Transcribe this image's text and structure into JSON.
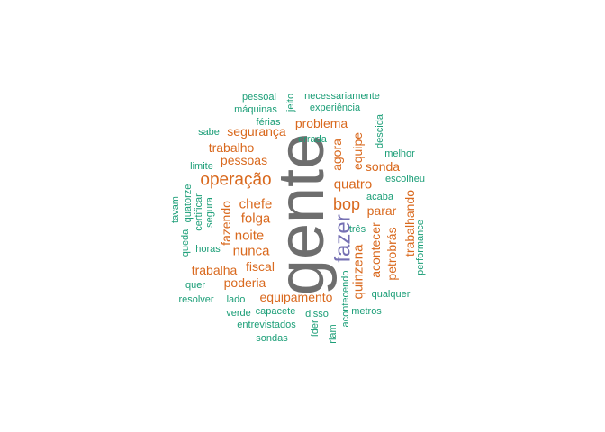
{
  "colors": {
    "gray": "#6e6e6e",
    "orange": "#d9691e",
    "purple": "#7570b3",
    "teal": "#1b9e77"
  },
  "words": [
    {
      "text": "gente",
      "color": "gray",
      "size": 72,
      "rotate": true
    },
    {
      "text": "fazer",
      "color": "purple",
      "size": 24,
      "rotate": true
    },
    {
      "text": "operação",
      "color": "orange",
      "size": 19,
      "rotate": false
    },
    {
      "text": "bop",
      "color": "orange",
      "size": 18,
      "rotate": false
    },
    {
      "text": "quatro",
      "color": "orange",
      "size": 15,
      "rotate": false
    },
    {
      "text": "chefe",
      "color": "orange",
      "size": 15,
      "rotate": false
    },
    {
      "text": "folga",
      "color": "orange",
      "size": 15,
      "rotate": false
    },
    {
      "text": "noite",
      "color": "orange",
      "size": 15,
      "rotate": false
    },
    {
      "text": "nunca",
      "color": "orange",
      "size": 15,
      "rotate": false
    },
    {
      "text": "quinzena",
      "color": "orange",
      "size": 15,
      "rotate": true
    },
    {
      "text": "problema",
      "color": "orange",
      "size": 14,
      "rotate": false
    },
    {
      "text": "segurança",
      "color": "orange",
      "size": 14,
      "rotate": false
    },
    {
      "text": "trabalho",
      "color": "orange",
      "size": 14,
      "rotate": false
    },
    {
      "text": "pessoas",
      "color": "orange",
      "size": 14,
      "rotate": false
    },
    {
      "text": "sonda",
      "color": "orange",
      "size": 14,
      "rotate": false
    },
    {
      "text": "parar",
      "color": "orange",
      "size": 14,
      "rotate": false
    },
    {
      "text": "fiscal",
      "color": "orange",
      "size": 14,
      "rotate": false
    },
    {
      "text": "trabalha",
      "color": "orange",
      "size": 14,
      "rotate": false
    },
    {
      "text": "poderia",
      "color": "orange",
      "size": 14,
      "rotate": false
    },
    {
      "text": "equipamento",
      "color": "orange",
      "size": 14,
      "rotate": false
    },
    {
      "text": "equipe",
      "color": "orange",
      "size": 14,
      "rotate": true
    },
    {
      "text": "agora",
      "color": "orange",
      "size": 14,
      "rotate": true
    },
    {
      "text": "fazendo",
      "color": "orange",
      "size": 14,
      "rotate": true
    },
    {
      "text": "acontecer",
      "color": "orange",
      "size": 14,
      "rotate": true
    },
    {
      "text": "petrobrás",
      "color": "orange",
      "size": 14,
      "rotate": true
    },
    {
      "text": "trabalhando",
      "color": "orange",
      "size": 14,
      "rotate": true
    },
    {
      "text": "pessoal",
      "color": "teal",
      "size": 11,
      "rotate": false
    },
    {
      "text": "jeito",
      "color": "teal",
      "size": 11,
      "rotate": true
    },
    {
      "text": "necessariamente",
      "color": "teal",
      "size": 11,
      "rotate": false
    },
    {
      "text": "máquinas",
      "color": "teal",
      "size": 11,
      "rotate": false
    },
    {
      "text": "experiência",
      "color": "teal",
      "size": 11,
      "rotate": false
    },
    {
      "text": "férias",
      "color": "teal",
      "size": 11,
      "rotate": false
    },
    {
      "text": "descida",
      "color": "teal",
      "size": 11,
      "rotate": true
    },
    {
      "text": "sabe",
      "color": "teal",
      "size": 11,
      "rotate": false
    },
    {
      "text": "errada",
      "color": "teal",
      "size": 11,
      "rotate": false
    },
    {
      "text": "melhor",
      "color": "teal",
      "size": 11,
      "rotate": false
    },
    {
      "text": "limite",
      "color": "teal",
      "size": 11,
      "rotate": false
    },
    {
      "text": "escolheu",
      "color": "teal",
      "size": 11,
      "rotate": false
    },
    {
      "text": "acaba",
      "color": "teal",
      "size": 11,
      "rotate": false
    },
    {
      "text": "tavam",
      "color": "teal",
      "size": 11,
      "rotate": true
    },
    {
      "text": "quatorze",
      "color": "teal",
      "size": 11,
      "rotate": true
    },
    {
      "text": "certificar",
      "color": "teal",
      "size": 11,
      "rotate": true
    },
    {
      "text": "segura",
      "color": "teal",
      "size": 11,
      "rotate": true
    },
    {
      "text": "queda",
      "color": "teal",
      "size": 11,
      "rotate": true
    },
    {
      "text": "três",
      "color": "teal",
      "size": 11,
      "rotate": false
    },
    {
      "text": "performance",
      "color": "teal",
      "size": 11,
      "rotate": true
    },
    {
      "text": "horas",
      "color": "teal",
      "size": 11,
      "rotate": false
    },
    {
      "text": "quer",
      "color": "teal",
      "size": 11,
      "rotate": false
    },
    {
      "text": "qualquer",
      "color": "teal",
      "size": 11,
      "rotate": false
    },
    {
      "text": "resolver",
      "color": "teal",
      "size": 11,
      "rotate": false
    },
    {
      "text": "lado",
      "color": "teal",
      "size": 11,
      "rotate": false
    },
    {
      "text": "acontecendo",
      "color": "teal",
      "size": 11,
      "rotate": true
    },
    {
      "text": "capacete",
      "color": "teal",
      "size": 11,
      "rotate": false
    },
    {
      "text": "metros",
      "color": "teal",
      "size": 11,
      "rotate": false
    },
    {
      "text": "verde",
      "color": "teal",
      "size": 11,
      "rotate": false
    },
    {
      "text": "disso",
      "color": "teal",
      "size": 11,
      "rotate": false
    },
    {
      "text": "entrevistados",
      "color": "teal",
      "size": 11,
      "rotate": false
    },
    {
      "text": "líder",
      "color": "teal",
      "size": 11,
      "rotate": true
    },
    {
      "text": "riam",
      "color": "teal",
      "size": 11,
      "rotate": true
    },
    {
      "text": "sondas",
      "color": "teal",
      "size": 11,
      "rotate": false
    }
  ]
}
